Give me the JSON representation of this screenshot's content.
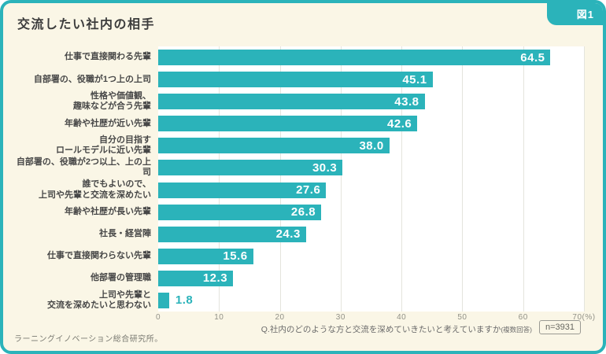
{
  "figure_label": "図1",
  "title": "交流したい社内の相手",
  "chart_data": {
    "type": "bar",
    "orientation": "horizontal",
    "title": "交流したい社内の相手",
    "categories": [
      "仕事で直接関わる先輩",
      "自部署の、役職が1つ上の上司",
      "性格や価値観、\n趣味などが合う先輩",
      "年齢や社歴が近い先輩",
      "自分の目指す\nロールモデルに近い先輩",
      "自部署の、役職が2つ以上、上の上司",
      "誰でもよいので、\n上司や先輩と交流を深めたい",
      "年齢や社歴が長い先輩",
      "社長・経営陣",
      "仕事で直接関わらない先輩",
      "他部署の管理職",
      "上司や先輩と\n交流を深めたいと思わない"
    ],
    "values": [
      64.5,
      45.1,
      43.8,
      42.6,
      38.0,
      30.3,
      27.6,
      26.8,
      24.3,
      15.6,
      12.3,
      1.8
    ],
    "xlabel": "(%)",
    "xlim": [
      0,
      70
    ],
    "x_ticks": [
      "0",
      "10",
      "20",
      "30",
      "40",
      "50",
      "60",
      "70(%)"
    ],
    "grid": true,
    "legend": "none",
    "bar_color": "#2bb3ba",
    "value_label_inside_color": "#ffffff",
    "value_label_outside_color": "#2bb3ba",
    "outside_label_threshold": 5
  },
  "footer": {
    "question": "Q.社内のどのような方と交流を深めていきたいと考えていますか",
    "note": "(複数回答)",
    "n_label": "n=3931",
    "source": "ラーニングイノベーション総合研究所。"
  },
  "colors": {
    "accent": "#2bb3ba",
    "card_background": "#faf6e6",
    "plot_background": "#ffffff",
    "gridline": "#e4e4dd",
    "title_text": "#3c3c3c"
  }
}
